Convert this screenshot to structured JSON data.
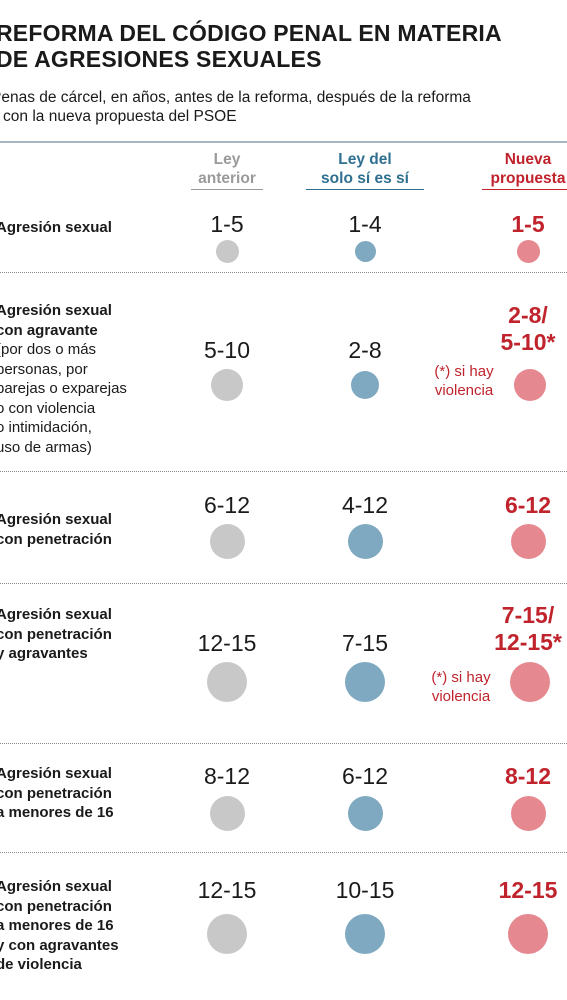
{
  "title_lines": [
    "REFORMA DEL CÓDIGO PENAL EN MATERIA",
    "DE AGRESIONES SEXUALES"
  ],
  "subtitle_lines": [
    "Penas de cárcel, en años,  antes de la reforma, después de la reforma",
    "y con la nueva propuesta del PSOE"
  ],
  "columns": [
    {
      "lines": [
        "Ley",
        "anterior"
      ],
      "color": "#9a9a9a"
    },
    {
      "lines": [
        "Ley del",
        "solo sí es sí"
      ],
      "color": "#2f6f8f"
    },
    {
      "lines": [
        "Nueva",
        "propuesta"
      ],
      "color": "#c0232c"
    }
  ],
  "colors": {
    "gray": "#c8c8c8",
    "blue": "#7fa9c1",
    "red": "#e68890",
    "red_text": "#c0232c"
  },
  "rows": [
    {
      "label_lines": [
        "Agresión sexual"
      ],
      "bold_count": 1,
      "anterior": "1-5",
      "solo_si": "1-4",
      "nueva": [
        "1-5"
      ],
      "note": []
    },
    {
      "label_lines": [
        "Agresión sexual",
        "con agravante",
        "(por dos o más",
        "personas, por",
        "parejas o exparejas",
        "o con violencia",
        "o intimidación,",
        "uso de armas)"
      ],
      "bold_count": 2,
      "anterior": "5-10",
      "solo_si": "2-8",
      "nueva": [
        "2-8/",
        "5-10*"
      ],
      "note": [
        "(*) si hay",
        "violencia"
      ]
    },
    {
      "label_lines": [
        "Agresión sexual",
        "con penetración"
      ],
      "bold_count": 2,
      "anterior": "6-12",
      "solo_si": "4-12",
      "nueva": [
        "6-12"
      ],
      "note": []
    },
    {
      "label_lines": [
        "Agresión sexual",
        "con penetración",
        "y agravantes"
      ],
      "bold_count": 3,
      "anterior": "12-15",
      "solo_si": "7-15",
      "nueva": [
        "7-15/",
        "12-15*"
      ],
      "note": [
        "(*) si hay",
        "violencia"
      ]
    },
    {
      "label_lines": [
        "Agresión sexual",
        "con penetración",
        "a menores de 16"
      ],
      "bold_count": 3,
      "anterior": "8-12",
      "solo_si": "6-12",
      "nueva": [
        "8-12"
      ],
      "note": []
    },
    {
      "label_lines": [
        "Agresión sexual",
        "con penetración",
        "a menores de 16",
        "y con agravantes",
        "de violencia"
      ],
      "bold_count": 5,
      "anterior": "12-15",
      "solo_si": "10-15",
      "nueva": [
        "12-15"
      ],
      "note": []
    }
  ],
  "chart_data": {
    "type": "table",
    "title": "REFORMA DEL CÓDIGO PENAL EN MATERIA DE AGRESIONES SEXUALES",
    "subtitle": "Penas de cárcel, en años,  antes de la reforma, después de la reforma y con la nueva propuesta del PSOE",
    "columns": [
      "Ley anterior",
      "Ley del solo sí es sí",
      "Nueva propuesta"
    ],
    "rows": [
      {
        "crime": "Agresión sexual",
        "values_years": [
          [
            1,
            5
          ],
          [
            1,
            4
          ],
          [
            1,
            5
          ]
        ]
      },
      {
        "crime": "Agresión sexual con agravante",
        "values_years": [
          [
            5,
            10
          ],
          [
            2,
            8
          ],
          [
            2,
            8
          ]
        ],
        "nueva_alt_if_violence": [
          5,
          10
        ]
      },
      {
        "crime": "Agresión sexual con penetración",
        "values_years": [
          [
            6,
            12
          ],
          [
            4,
            12
          ],
          [
            6,
            12
          ]
        ]
      },
      {
        "crime": "Agresión sexual con penetración y agravantes",
        "values_years": [
          [
            12,
            15
          ],
          [
            7,
            15
          ],
          [
            7,
            15
          ]
        ],
        "nueva_alt_if_violence": [
          12,
          15
        ]
      },
      {
        "crime": "Agresión sexual con penetración a menores de 16",
        "values_years": [
          [
            8,
            12
          ],
          [
            6,
            12
          ],
          [
            8,
            12
          ]
        ]
      },
      {
        "crime": "Agresión sexual con penetración a menores de 16 y con agravantes de violencia",
        "values_years": [
          [
            12,
            15
          ],
          [
            10,
            15
          ],
          [
            12,
            15
          ]
        ]
      }
    ]
  }
}
